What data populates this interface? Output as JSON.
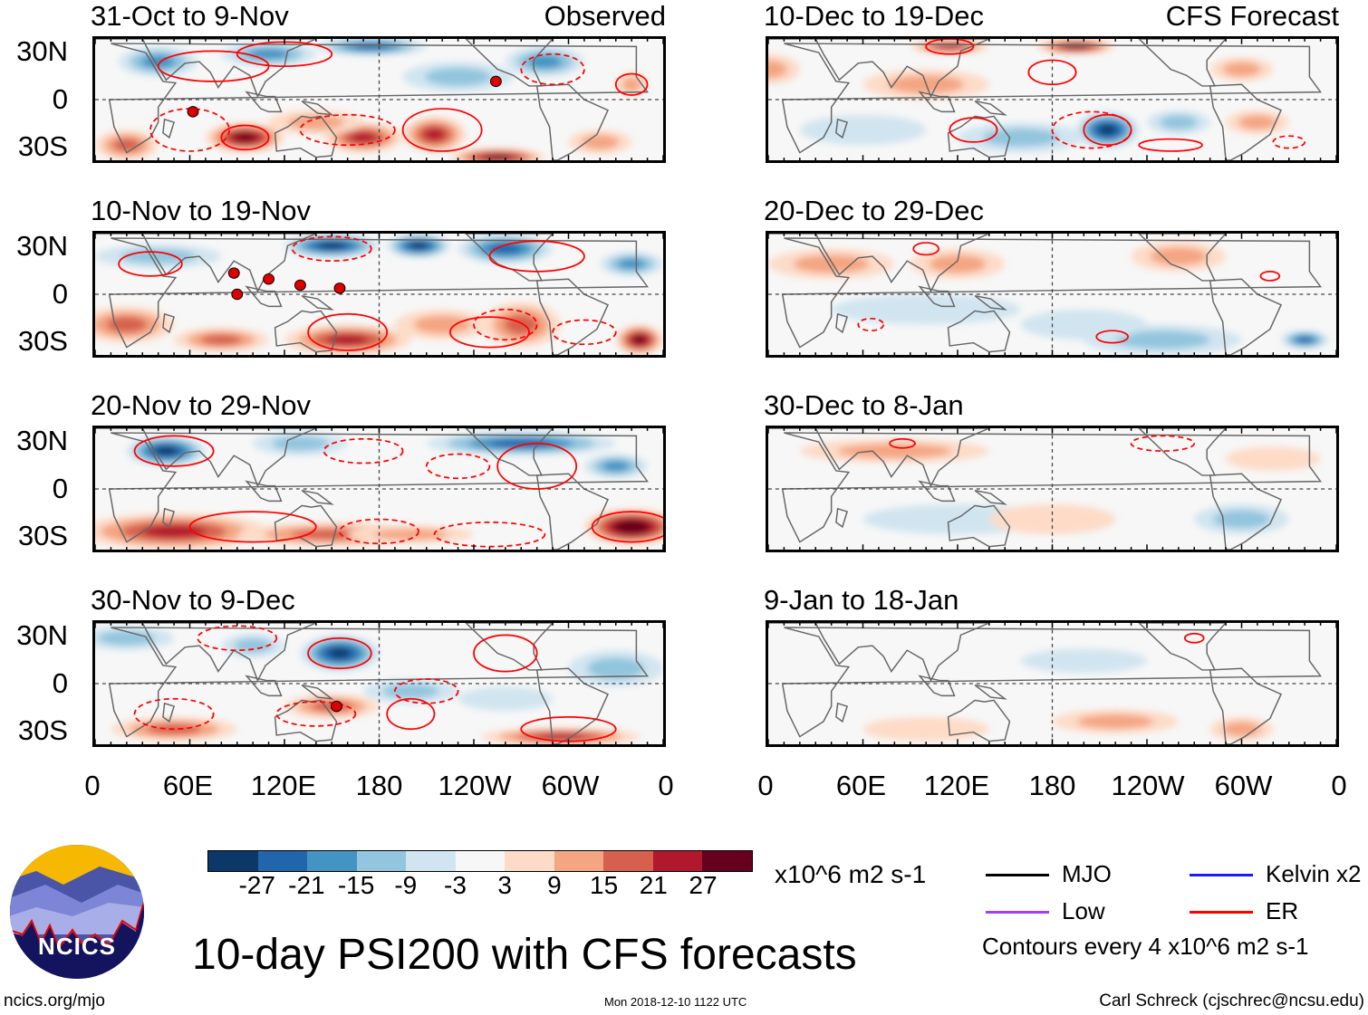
{
  "title": "10-day PSI200 with CFS forecasts",
  "units": "x10^6 m2 s-1",
  "contour_note": "Contours every 4 x10^6 m2 s-1",
  "footer": {
    "left": "ncics.org/mjo",
    "center": "Mon 2018-12-10 1122 UTC",
    "right": "Carl Schreck (cjschrec@ncsu.edu)"
  },
  "logo_text": "NCICS",
  "lat_labels": [
    "30N",
    "0",
    "30S"
  ],
  "lon_labels": [
    "0",
    "60E",
    "120E",
    "180",
    "120W",
    "60W",
    "0"
  ],
  "colorbar": {
    "colors": [
      "#0b3869",
      "#2166ac",
      "#4393c3",
      "#92c5de",
      "#d1e5f0",
      "#f7f7f7",
      "#fddbc7",
      "#f4a582",
      "#d6604d",
      "#b2182b",
      "#67001f"
    ],
    "labels": [
      "-27",
      "-21",
      "-15",
      "-9",
      "-3",
      "3",
      "9",
      "15",
      "21",
      "27"
    ]
  },
  "legend": [
    {
      "label": "MJO",
      "color": "#000000"
    },
    {
      "label": "Kelvin x2",
      "color": "#1a1aff"
    },
    {
      "label": "Low",
      "color": "#a040f0"
    },
    {
      "label": "ER",
      "color": "#ff0000"
    }
  ],
  "column_tags": {
    "left": "Observed",
    "right": "CFS Forecast"
  },
  "map_data": {
    "left": [
      {
        "title": "31-Oct to 9-Nov",
        "blobs": [
          [
            40,
            25,
            25,
            10,
            -15
          ],
          [
            110,
            30,
            30,
            8,
            -15
          ],
          [
            175,
            35,
            35,
            6,
            -21
          ],
          [
            230,
            15,
            35,
            10,
            -9
          ],
          [
            285,
            25,
            25,
            10,
            -15
          ],
          [
            20,
            -30,
            20,
            10,
            15
          ],
          [
            95,
            -25,
            25,
            10,
            27
          ],
          [
            170,
            -25,
            25,
            10,
            21
          ],
          [
            215,
            -23,
            20,
            12,
            21
          ],
          [
            255,
            -38,
            30,
            6,
            27
          ],
          [
            140,
            -15,
            30,
            8,
            9
          ],
          [
            320,
            -28,
            20,
            8,
            9
          ],
          [
            340,
            10,
            10,
            8,
            9
          ]
        ],
        "contours": [
          [
            75,
            22,
            35,
            10,
            0
          ],
          [
            120,
            30,
            30,
            8,
            0
          ],
          [
            220,
            -20,
            25,
            14,
            0
          ],
          [
            95,
            -25,
            15,
            8,
            0
          ],
          [
            340,
            10,
            10,
            7,
            0
          ],
          [
            60,
            -20,
            25,
            14,
            1
          ],
          [
            160,
            -20,
            30,
            10,
            1
          ],
          [
            290,
            20,
            20,
            10,
            1
          ]
        ],
        "storms": [
          [
            62,
            -8
          ],
          [
            254,
            12
          ]
        ]
      },
      {
        "title": "10-Nov to 19-Nov",
        "blobs": [
          [
            150,
            32,
            30,
            8,
            -27
          ],
          [
            205,
            32,
            20,
            8,
            -27
          ],
          [
            260,
            30,
            30,
            10,
            -21
          ],
          [
            340,
            20,
            20,
            8,
            -15
          ],
          [
            40,
            25,
            40,
            8,
            -9
          ],
          [
            20,
            -20,
            30,
            12,
            15
          ],
          [
            80,
            -30,
            30,
            8,
            15
          ],
          [
            160,
            -30,
            40,
            10,
            21
          ],
          [
            220,
            -20,
            30,
            10,
            9
          ],
          [
            270,
            -20,
            25,
            15,
            15
          ],
          [
            345,
            -30,
            15,
            10,
            27
          ]
        ],
        "contours": [
          [
            35,
            20,
            20,
            8,
            0
          ],
          [
            160,
            -25,
            25,
            12,
            0
          ],
          [
            280,
            25,
            30,
            10,
            0
          ],
          [
            250,
            -25,
            25,
            10,
            0
          ],
          [
            150,
            30,
            25,
            8,
            1
          ],
          [
            260,
            -20,
            20,
            10,
            1
          ],
          [
            310,
            -25,
            20,
            8,
            1
          ]
        ],
        "storms": [
          [
            88,
            14
          ],
          [
            110,
            10
          ],
          [
            130,
            6
          ],
          [
            155,
            4
          ],
          [
            90,
            0
          ]
        ]
      },
      {
        "title": "20-Nov to 29-Nov",
        "blobs": [
          [
            45,
            25,
            25,
            10,
            -27
          ],
          [
            130,
            30,
            30,
            8,
            -9
          ],
          [
            270,
            30,
            60,
            8,
            -21
          ],
          [
            330,
            15,
            20,
            8,
            -15
          ],
          [
            50,
            -28,
            60,
            12,
            21
          ],
          [
            150,
            -30,
            60,
            8,
            15
          ],
          [
            340,
            -25,
            30,
            12,
            33
          ],
          [
            200,
            -30,
            40,
            6,
            9
          ]
        ],
        "contours": [
          [
            50,
            25,
            25,
            10,
            0
          ],
          [
            280,
            15,
            25,
            15,
            0
          ],
          [
            340,
            -25,
            25,
            10,
            0
          ],
          [
            100,
            -25,
            40,
            10,
            0
          ],
          [
            170,
            25,
            25,
            8,
            1
          ],
          [
            230,
            15,
            20,
            8,
            1
          ],
          [
            250,
            -30,
            35,
            8,
            1
          ],
          [
            180,
            -28,
            25,
            8,
            1
          ]
        ],
        "storms": []
      },
      {
        "title": "30-Nov to 9-Dec",
        "blobs": [
          [
            155,
            20,
            25,
            12,
            -27
          ],
          [
            20,
            30,
            30,
            8,
            -9
          ],
          [
            100,
            25,
            20,
            8,
            -9
          ],
          [
            330,
            10,
            30,
            12,
            -9
          ],
          [
            50,
            -30,
            40,
            8,
            15
          ],
          [
            150,
            -15,
            30,
            8,
            15
          ],
          [
            295,
            -35,
            50,
            6,
            21
          ],
          [
            200,
            -5,
            30,
            8,
            -9
          ],
          [
            260,
            -10,
            30,
            8,
            -3
          ]
        ],
        "contours": [
          [
            155,
            20,
            20,
            10,
            0
          ],
          [
            260,
            20,
            20,
            12,
            0
          ],
          [
            200,
            -20,
            15,
            10,
            0
          ],
          [
            300,
            -30,
            30,
            8,
            0
          ],
          [
            90,
            30,
            25,
            8,
            1
          ],
          [
            210,
            -5,
            20,
            8,
            1
          ],
          [
            140,
            -20,
            25,
            8,
            1
          ],
          [
            50,
            -20,
            25,
            10,
            1
          ]
        ],
        "storms": [
          [
            153,
            -15
          ]
        ]
      }
    ],
    "right": [
      {
        "title": "10-Dec to 19-Dec",
        "blobs": [
          [
            115,
            35,
            25,
            5,
            21
          ],
          [
            195,
            35,
            25,
            5,
            27
          ],
          [
            215,
            -20,
            20,
            12,
            -27
          ],
          [
            160,
            -25,
            40,
            10,
            -9
          ],
          [
            60,
            -20,
            40,
            10,
            -3
          ],
          [
            260,
            -15,
            20,
            8,
            -9
          ],
          [
            310,
            -15,
            20,
            8,
            9
          ],
          [
            100,
            10,
            40,
            10,
            9
          ],
          [
            300,
            20,
            20,
            8,
            9
          ],
          [
            0,
            20,
            20,
            10,
            9
          ]
        ],
        "contours": [
          [
            115,
            35,
            15,
            5,
            0
          ],
          [
            180,
            18,
            15,
            8,
            0
          ],
          [
            215,
            -20,
            15,
            10,
            0
          ],
          [
            130,
            -20,
            15,
            8,
            0
          ],
          [
            255,
            -30,
            20,
            4,
            0
          ],
          [
            205,
            -20,
            25,
            12,
            1
          ],
          [
            330,
            -28,
            10,
            4,
            1
          ]
        ],
        "storms": []
      },
      {
        "title": "20-Dec to 29-Dec",
        "blobs": [
          [
            40,
            20,
            40,
            10,
            9
          ],
          [
            120,
            20,
            30,
            10,
            9
          ],
          [
            260,
            25,
            30,
            10,
            9
          ],
          [
            250,
            -30,
            50,
            10,
            -9
          ],
          [
            340,
            -30,
            15,
            6,
            -21
          ],
          [
            100,
            -10,
            60,
            10,
            -3
          ],
          [
            200,
            -20,
            40,
            10,
            -3
          ]
        ],
        "contours": [
          [
            100,
            30,
            8,
            4,
            0
          ],
          [
            218,
            -28,
            10,
            4,
            0
          ],
          [
            318,
            12,
            6,
            3,
            0
          ],
          [
            65,
            -20,
            8,
            4,
            1
          ]
        ],
        "storms": []
      },
      {
        "title": "30-Dec to 8-Jan",
        "blobs": [
          [
            80,
            25,
            60,
            8,
            9
          ],
          [
            300,
            -20,
            30,
            10,
            -9
          ],
          [
            120,
            -20,
            60,
            10,
            -3
          ],
          [
            180,
            -20,
            40,
            10,
            3
          ],
          [
            320,
            20,
            30,
            8,
            3
          ]
        ],
        "contours": [
          [
            85,
            30,
            8,
            3,
            0
          ],
          [
            250,
            30,
            20,
            5,
            1
          ]
        ],
        "storms": []
      },
      {
        "title": "9-Jan to 18-Jan",
        "blobs": [
          [
            200,
            15,
            40,
            8,
            -3
          ],
          [
            220,
            -25,
            40,
            8,
            9
          ],
          [
            300,
            -30,
            20,
            8,
            9
          ],
          [
            100,
            -30,
            40,
            8,
            3
          ]
        ],
        "contours": [
          [
            270,
            30,
            6,
            3,
            0
          ]
        ],
        "storms": []
      }
    ]
  }
}
